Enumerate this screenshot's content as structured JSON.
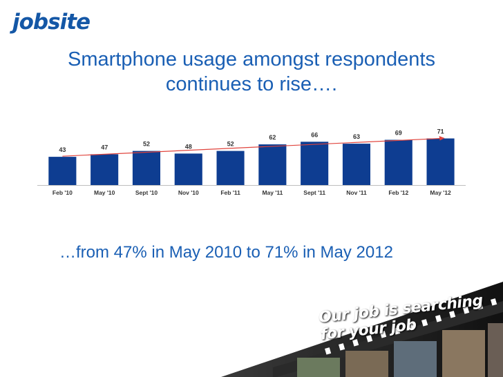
{
  "logo": {
    "text": "jobsite"
  },
  "title": {
    "line1": "Smartphone usage amongst respondents",
    "line2": "continues to rise…."
  },
  "subtitle": "…from 47% in May 2010 to 71% in May 2012",
  "banner": {
    "tagline": "Our job is searching for your job"
  },
  "colors": {
    "bar": "#0e3d91",
    "trend": "#e0433c",
    "title": "#1a5fb4",
    "brand": "#1457a6"
  },
  "chart_data": {
    "type": "bar",
    "title": "",
    "xlabel": "",
    "ylabel": "",
    "categories": [
      "Feb '10",
      "May '10",
      "Sept '10",
      "Nov '10",
      "Feb '11",
      "May '11",
      "Sept '11",
      "Nov '11",
      "Feb '12",
      "May '12"
    ],
    "values": [
      43,
      47,
      52,
      48,
      52,
      62,
      66,
      63,
      69,
      71
    ],
    "ylim": [
      0,
      100
    ],
    "trendline": {
      "type": "linear",
      "start": 44,
      "end": 71
    },
    "grid": false,
    "legend": "none"
  }
}
